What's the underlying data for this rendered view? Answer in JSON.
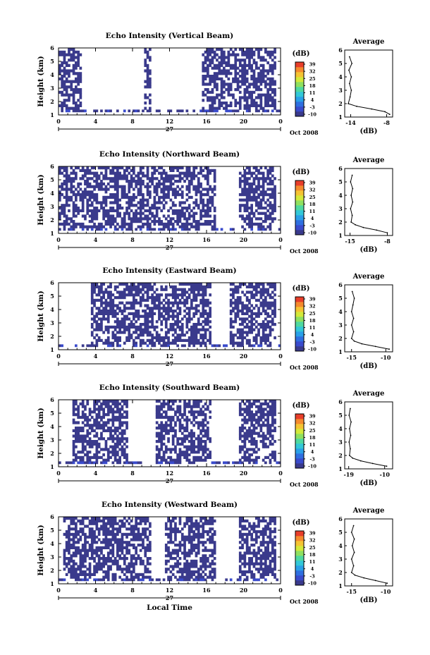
{
  "figure": {
    "xaxis_title": "Local Time",
    "date_label": "Oct 2008",
    "day_label": "27",
    "cbar_unit": "(dB)",
    "cbar_ticks": [
      "39",
      "32",
      "25",
      "18",
      "11",
      "4",
      "-3",
      "-10"
    ],
    "avg_title": "Average",
    "avg_xlabel": "(dB)",
    "height_label": "Height (km)",
    "palette": [
      "#3a3a8c",
      "#3a4bcc",
      "#2f6fe0",
      "#2aa0e8",
      "#33c8d8",
      "#4fd9a0",
      "#8fe060",
      "#d4e93a",
      "#f5c433",
      "#f58a2e",
      "#e83e2a"
    ]
  },
  "chart_data": [
    {
      "type": "heatmap",
      "title": "Echo Intensity (Vertical Beam)",
      "xlabel": "",
      "ylabel": "Height (km)",
      "x_ticks": [
        "0",
        "4",
        "8",
        "12",
        "16",
        "20",
        "0"
      ],
      "x_tick_values": [
        0,
        4,
        8,
        12,
        16,
        20,
        24
      ],
      "y_ticks": [
        "1",
        "2",
        "3",
        "4",
        "5",
        "6"
      ],
      "xlim": [
        0,
        24
      ],
      "ylim": [
        1,
        6
      ],
      "colorbar": {
        "unit": "(dB)",
        "min": -10,
        "max": 39
      },
      "echo_spans_hours": [
        [
          0,
          2.5
        ],
        [
          9.2,
          10.0
        ],
        [
          15.5,
          23.5
        ]
      ],
      "average_profile": {
        "title": "Average",
        "xlabel": "(dB)",
        "x_ticks": [
          "-14",
          "-8"
        ],
        "xlim": [
          -15,
          -7
        ],
        "height_km": [
          1.2,
          1.4,
          1.6,
          1.8,
          2.0,
          2.5,
          3.0,
          3.5,
          4.0,
          4.5,
          5.0,
          5.5
        ],
        "value_db": [
          -7.5,
          -8.3,
          -10.5,
          -13.0,
          -14.4,
          -14.1,
          -13.9,
          -14.2,
          -13.9,
          -14.3,
          -13.8,
          -14.2
        ]
      }
    },
    {
      "type": "heatmap",
      "title": "Echo Intensity (Northward Beam)",
      "xlabel": "",
      "ylabel": "Height (km)",
      "x_ticks": [
        "0",
        "4",
        "8",
        "12",
        "16",
        "20",
        "0"
      ],
      "x_tick_values": [
        0,
        4,
        8,
        12,
        16,
        20,
        24
      ],
      "y_ticks": [
        "1",
        "2",
        "3",
        "4",
        "5",
        "6"
      ],
      "xlim": [
        0,
        24
      ],
      "ylim": [
        1,
        6
      ],
      "colorbar": {
        "unit": "(dB)",
        "min": -10,
        "max": 39
      },
      "echo_spans_hours": [
        [
          0,
          17.0
        ],
        [
          19.5,
          23.5
        ]
      ],
      "average_profile": {
        "title": "Average",
        "xlabel": "(dB)",
        "x_ticks": [
          "-15",
          "-8"
        ],
        "xlim": [
          -16,
          -7
        ],
        "height_km": [
          1.2,
          1.4,
          1.6,
          1.8,
          2.0,
          2.5,
          3.0,
          3.5,
          4.0,
          4.5,
          5.0,
          5.5
        ],
        "value_db": [
          -8.0,
          -10.0,
          -12.5,
          -14.0,
          -14.8,
          -14.6,
          -14.9,
          -14.5,
          -14.8,
          -14.5,
          -14.9,
          -14.6
        ]
      }
    },
    {
      "type": "heatmap",
      "title": "Echo Intensity (Eastward Beam)",
      "xlabel": "",
      "ylabel": "Height (km)",
      "x_ticks": [
        "0",
        "4",
        "8",
        "12",
        "16",
        "20",
        "0"
      ],
      "x_tick_values": [
        0,
        4,
        8,
        12,
        16,
        20,
        24
      ],
      "y_ticks": [
        "1",
        "2",
        "3",
        "4",
        "5",
        "6"
      ],
      "xlim": [
        0,
        24
      ],
      "ylim": [
        1,
        6
      ],
      "colorbar": {
        "unit": "(dB)",
        "min": -10,
        "max": 39
      },
      "echo_spans_hours": [
        [
          3.5,
          16.5
        ],
        [
          18.5,
          23.5
        ]
      ],
      "average_profile": {
        "title": "Average",
        "xlabel": "(dB)",
        "x_ticks": [
          "-15",
          "-10"
        ],
        "xlim": [
          -16,
          -9
        ],
        "height_km": [
          1.2,
          1.4,
          1.6,
          1.8,
          2.0,
          2.5,
          3.0,
          3.5,
          4.0,
          4.5,
          5.0,
          5.5
        ],
        "value_db": [
          -9.5,
          -11.5,
          -13.5,
          -14.6,
          -15.0,
          -14.7,
          -15.0,
          -14.7,
          -15.0,
          -14.8,
          -14.6,
          -14.9
        ]
      }
    },
    {
      "type": "heatmap",
      "title": "Echo Intensity (Southward Beam)",
      "xlabel": "",
      "ylabel": "Height (km)",
      "x_ticks": [
        "0",
        "4",
        "8",
        "12",
        "16",
        "20",
        "0"
      ],
      "x_tick_values": [
        0,
        4,
        8,
        12,
        16,
        20,
        24
      ],
      "y_ticks": [
        "1",
        "2",
        "3",
        "4",
        "5",
        "6"
      ],
      "xlim": [
        0,
        24
      ],
      "ylim": [
        1,
        6
      ],
      "colorbar": {
        "unit": "(dB)",
        "min": -10,
        "max": 39
      },
      "echo_spans_hours": [
        [
          1.5,
          7.5
        ],
        [
          10.5,
          16.5
        ],
        [
          19.5,
          23.5
        ]
      ],
      "average_profile": {
        "title": "Average",
        "xlabel": "(dB)",
        "x_ticks": [
          "-19",
          "-10"
        ],
        "xlim": [
          -20,
          -8
        ],
        "height_km": [
          1.2,
          1.4,
          1.6,
          1.8,
          2.0,
          2.5,
          3.0,
          3.5,
          4.0,
          4.5,
          5.0,
          5.5
        ],
        "value_db": [
          -9.5,
          -13.0,
          -16.0,
          -18.0,
          -18.8,
          -18.6,
          -18.9,
          -18.5,
          -18.8,
          -18.4,
          -18.9,
          -18.6
        ]
      }
    },
    {
      "type": "heatmap",
      "title": "Echo Intensity (Westward Beam)",
      "xlabel": "Local Time",
      "ylabel": "Height (km)",
      "x_ticks": [
        "0",
        "4",
        "8",
        "12",
        "16",
        "20",
        "0"
      ],
      "x_tick_values": [
        0,
        4,
        8,
        12,
        16,
        20,
        24
      ],
      "y_ticks": [
        "1",
        "2",
        "3",
        "4",
        "5",
        "6"
      ],
      "xlim": [
        0,
        24
      ],
      "ylim": [
        1,
        6
      ],
      "colorbar": {
        "unit": "(dB)",
        "min": -10,
        "max": 39
      },
      "echo_spans_hours": [
        [
          0.5,
          10.0
        ],
        [
          11.5,
          17.0
        ],
        [
          19.5,
          23.5
        ]
      ],
      "average_profile": {
        "title": "Average",
        "xlabel": "(dB)",
        "x_ticks": [
          "-15",
          "-10"
        ],
        "xlim": [
          -16,
          -9
        ],
        "height_km": [
          1.2,
          1.4,
          1.6,
          1.8,
          2.0,
          2.5,
          3.0,
          3.5,
          4.0,
          4.5,
          5.0,
          5.5
        ],
        "value_db": [
          -9.8,
          -11.5,
          -13.2,
          -14.5,
          -15.0,
          -14.7,
          -15.0,
          -14.6,
          -14.9,
          -14.6,
          -15.0,
          -14.7
        ]
      }
    }
  ]
}
